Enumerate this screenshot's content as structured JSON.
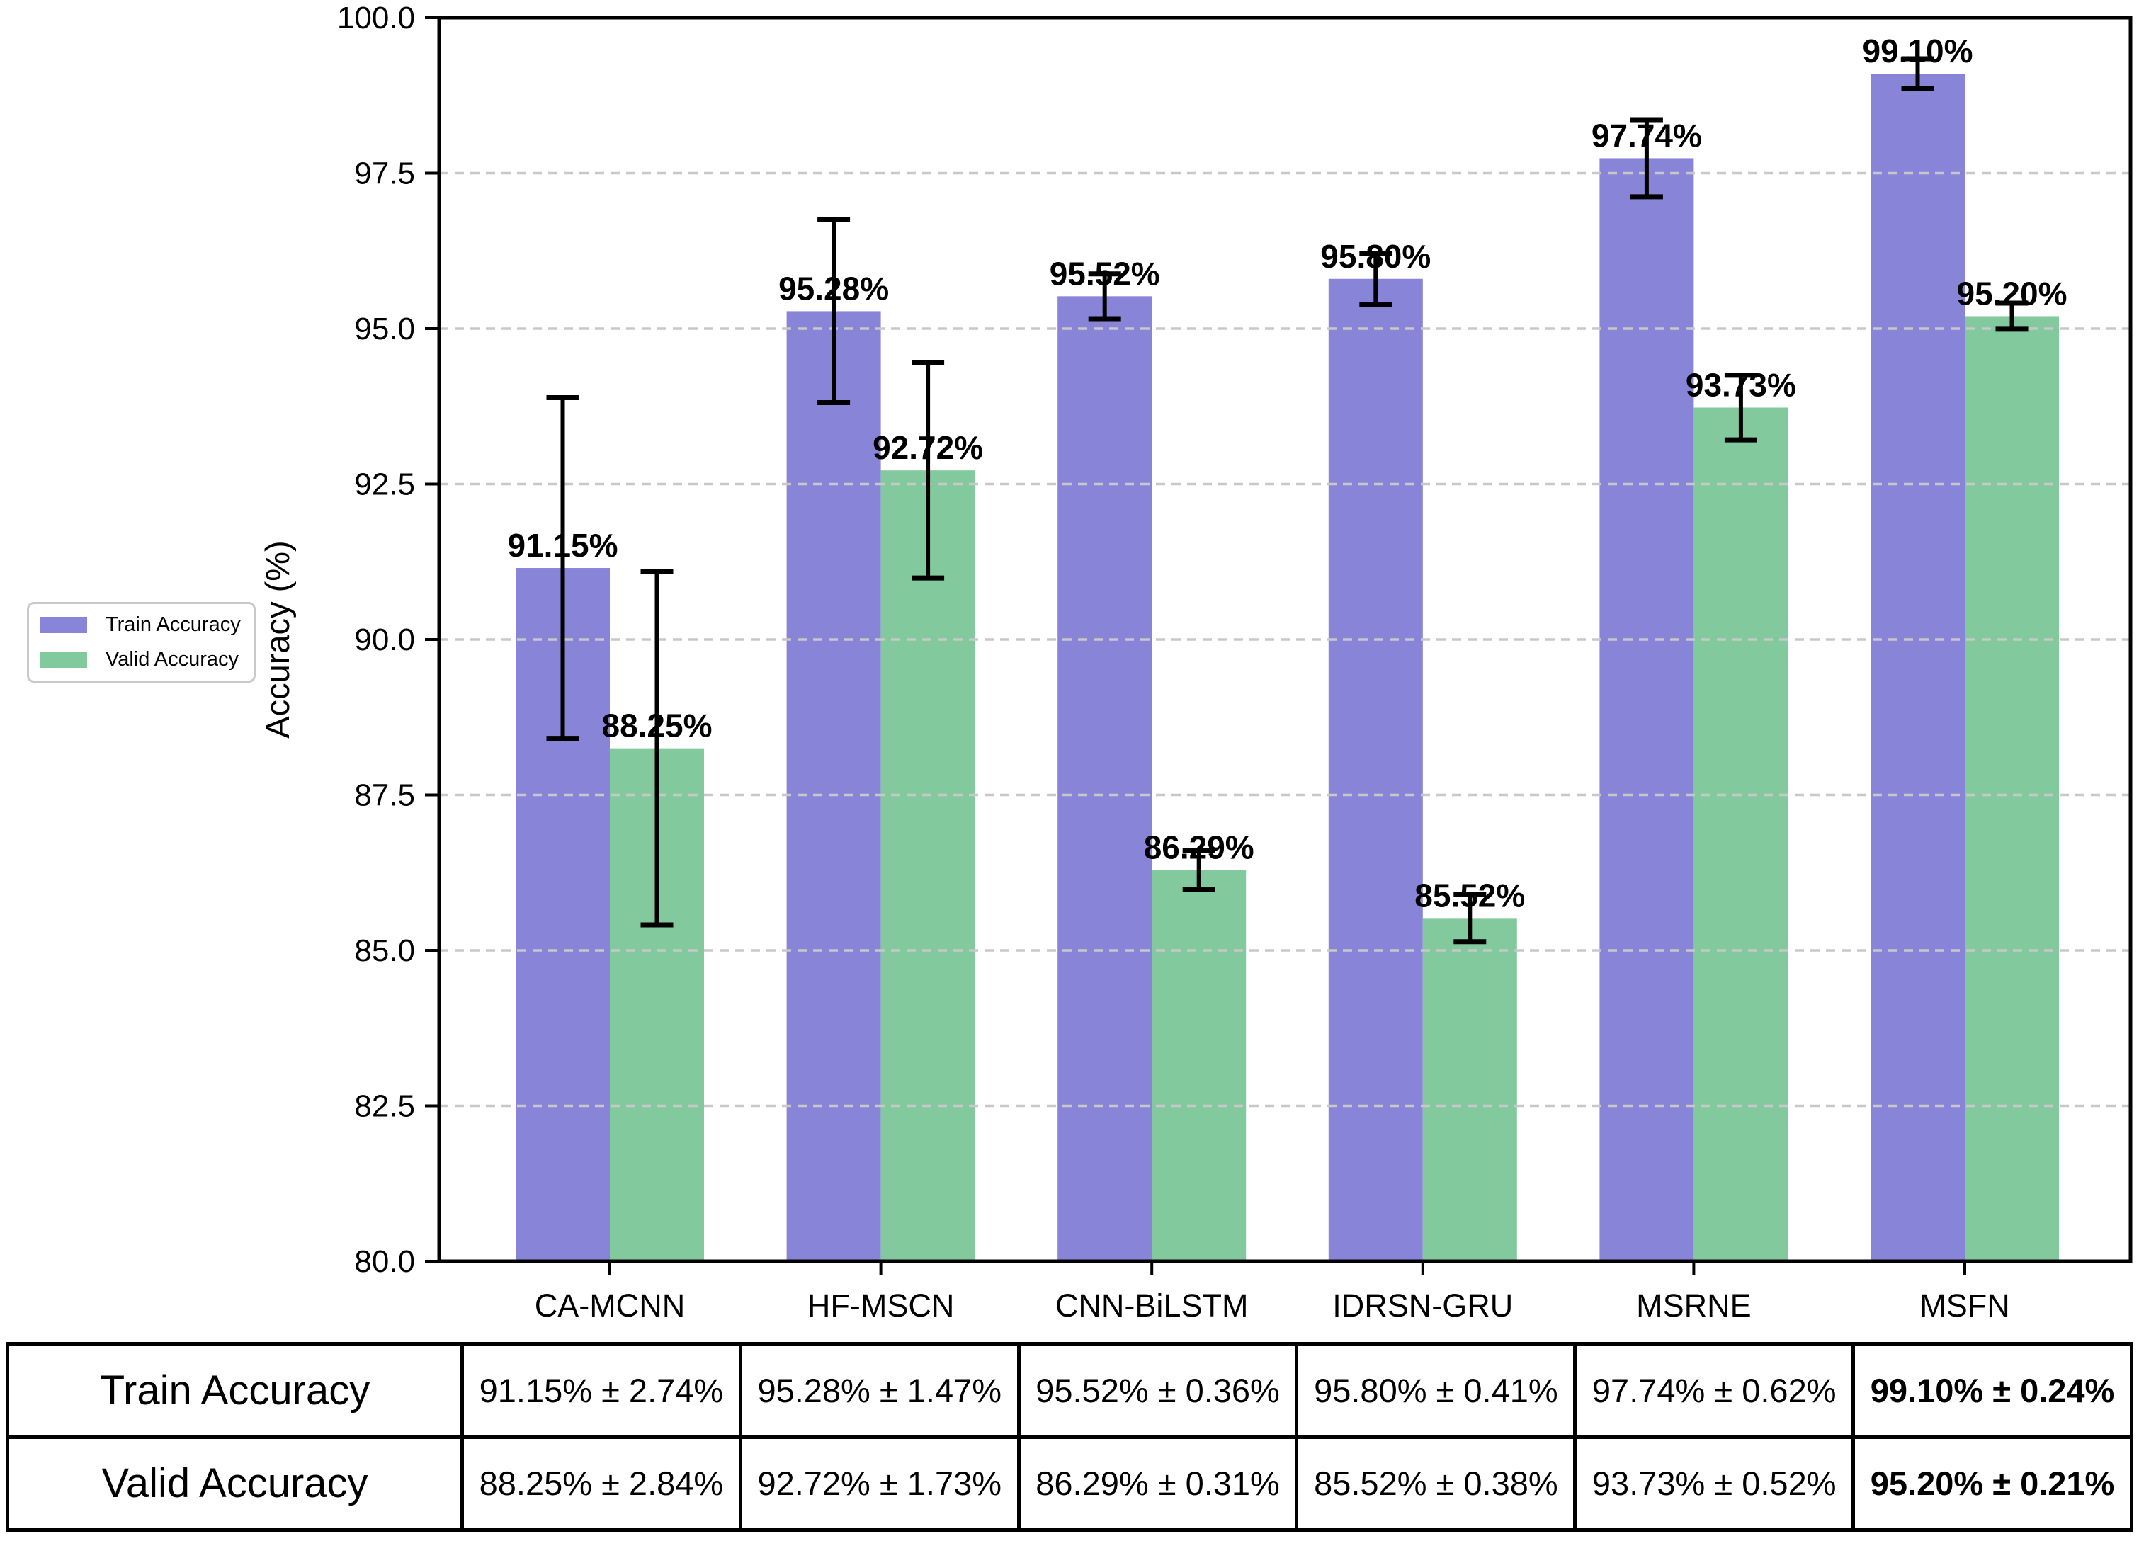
{
  "chart_data": {
    "type": "bar",
    "title": "",
    "categories": [
      "CA-MCNN",
      "HF-MSCN",
      "CNN-BiLSTM",
      "IDRSN-GRU",
      "MSRNE",
      "MSFN"
    ],
    "series": [
      {
        "name": "Train Accuracy",
        "color": "#8884d8",
        "values": [
          91.15,
          95.28,
          95.52,
          95.8,
          97.74,
          99.1
        ],
        "errors": [
          2.74,
          1.47,
          0.36,
          0.41,
          0.62,
          0.24
        ]
      },
      {
        "name": "Valid Accuracy",
        "color": "#82ca9d",
        "values": [
          88.25,
          92.72,
          86.29,
          85.52,
          93.73,
          95.2
        ],
        "errors": [
          2.84,
          1.73,
          0.31,
          0.38,
          0.52,
          0.21
        ]
      }
    ],
    "xlabel": "",
    "ylabel": "Accuracy (%)",
    "ylim": [
      80,
      100
    ],
    "yticks": [
      80.0,
      82.5,
      85.0,
      87.5,
      90.0,
      92.5,
      95.0,
      97.5,
      100.0
    ],
    "grid": "horizontal-dashed",
    "grid_color": "#c8c8c8",
    "error_bar_color": "#000000",
    "legend_position": "outside-left",
    "bar_label_format": "{value}%"
  },
  "table": {
    "rows": [
      {
        "label": "Train Accuracy",
        "cells": [
          "91.15% ± 2.74%",
          "95.28% ± 1.47%",
          "95.52% ± 0.36%",
          "95.80% ± 0.41%",
          "97.74% ± 0.62%",
          "99.10% ± 0.24%"
        ]
      },
      {
        "label": "Valid Accuracy",
        "cells": [
          "88.25% ± 2.84%",
          "92.72% ± 1.73%",
          "86.29% ± 0.31%",
          "85.52% ± 0.38%",
          "93.73% ± 0.52%",
          "95.20% ± 0.21%"
        ]
      }
    ],
    "bold_last_column": true
  }
}
